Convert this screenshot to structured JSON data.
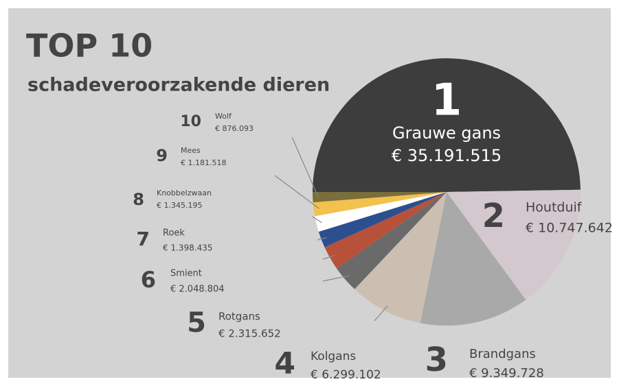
{
  "chart_data": {
    "type": "pie",
    "title": "TOP 10",
    "subtitle": "schadeveroorzakende dieren",
    "ranks": [
      1,
      2,
      3,
      4,
      5,
      6,
      7,
      8,
      9,
      10
    ],
    "categories": [
      "Grauwe gans",
      "Houtduif",
      "Brandgans",
      "Kolgans",
      "Rotgans",
      "Smient",
      "Roek",
      "Knobbelzwaan",
      "Mees",
      "Wolf"
    ],
    "values": [
      35191515,
      10747642,
      9349728,
      6299102,
      2315652,
      2048804,
      1398435,
      1345195,
      1181518,
      876093
    ],
    "value_labels": [
      "€ 35.191.515",
      "€ 10.747.642",
      "€ 9.349.728",
      "€ 6.299.102",
      "€ 2.315.652",
      "€ 2.048.804",
      "€ 1.398.435",
      "€ 1.345.195",
      "€ 1.181.518",
      "€ 876.093"
    ],
    "colors": [
      "#3d3d3d",
      "#d2c8cd",
      "#a9a9a9",
      "#cbbfb1",
      "#6a6a6a",
      "#b8513a",
      "#2b4f8f",
      "#ffffff",
      "#f2c14e",
      "#7a6e3a"
    ]
  }
}
